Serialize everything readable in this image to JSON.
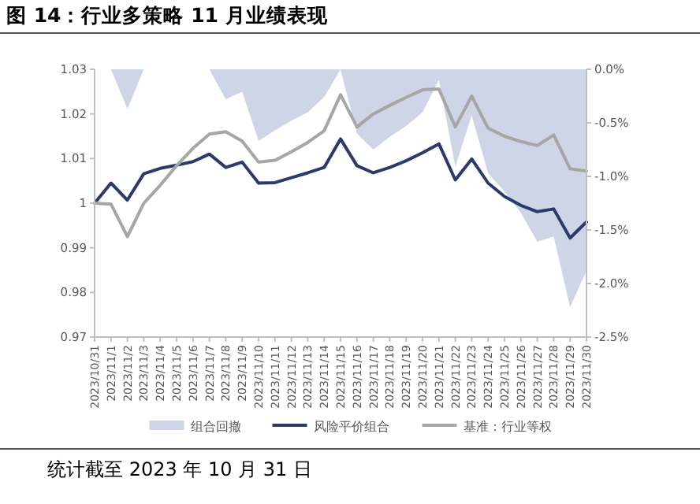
{
  "chart_data": {
    "type": "line",
    "title": "图 14：行业多策略 11 月业绩表现",
    "categories": [
      "2023/10/31",
      "2023/11/1",
      "2023/11/2",
      "2023/11/3",
      "2023/11/4",
      "2023/11/5",
      "2023/11/6",
      "2023/11/7",
      "2023/11/8",
      "2023/11/9",
      "2023/11/10",
      "2023/11/11",
      "2023/11/12",
      "2023/11/13",
      "2023/11/14",
      "2023/11/15",
      "2023/11/16",
      "2023/11/17",
      "2023/11/18",
      "2023/11/19",
      "2023/11/20",
      "2023/11/21",
      "2023/11/22",
      "2023/11/23",
      "2023/11/24",
      "2023/11/25",
      "2023/11/26",
      "2023/11/27",
      "2023/11/28",
      "2023/11/29",
      "2023/11/30"
    ],
    "series": [
      {
        "name": "组合回撤",
        "type": "area",
        "axis": "y2",
        "color": "#cdd5e6",
        "values": [
          0,
          0,
          -0.37,
          0,
          0,
          0,
          0,
          0,
          -0.28,
          -0.21,
          -0.67,
          -0.57,
          -0.48,
          -0.4,
          -0.26,
          0,
          -0.6,
          -0.75,
          -0.63,
          -0.53,
          -0.4,
          -0.1,
          -0.91,
          -0.43,
          -0.97,
          -1.14,
          -1.34,
          -1.61,
          -1.56,
          -2.22,
          -1.88
        ]
      },
      {
        "name": "风险平价组合",
        "color": "#2b3a6b",
        "values": [
          1.0,
          1.0045,
          1.0007,
          1.0066,
          1.0078,
          1.0085,
          1.0093,
          1.011,
          1.008,
          1.0092,
          1.0045,
          1.0046,
          1.0057,
          1.0068,
          1.008,
          1.0144,
          1.0084,
          1.0068,
          1.008,
          1.0095,
          1.0113,
          1.0133,
          1.0052,
          1.0099,
          1.0045,
          1.0015,
          0.9995,
          0.9981,
          0.9987,
          0.9922,
          0.9958
        ]
      },
      {
        "name": "基准：行业等权",
        "color": "#a6a6a6",
        "values": [
          1.0,
          0.9998,
          0.9925,
          1.0,
          1.004,
          1.0084,
          1.0123,
          1.0155,
          1.016,
          1.0139,
          1.0092,
          1.0096,
          1.0115,
          1.0136,
          1.0162,
          1.0243,
          1.0171,
          1.02,
          1.0219,
          1.0237,
          1.0254,
          1.0256,
          1.0171,
          1.024,
          1.0168,
          1.015,
          1.0138,
          1.0129,
          1.0153,
          1.0077,
          1.0072
        ]
      }
    ],
    "ylim": [
      0.97,
      1.03
    ],
    "yticks": [
      0.97,
      0.98,
      0.99,
      1,
      1.01,
      1.02,
      1.03
    ],
    "y2lim": [
      -2.5,
      0
    ],
    "y2ticks": [
      {
        "value": 0,
        "label": "0.0%"
      },
      {
        "value": -0.5,
        "label": "-0.5%"
      },
      {
        "value": -1,
        "label": "-1.0%"
      },
      {
        "value": -1.5,
        "label": "-1.5%"
      },
      {
        "value": -2,
        "label": "-2.0%"
      },
      {
        "value": -2.5,
        "label": "-2.5%"
      }
    ],
    "legend": "bottom",
    "grid": false,
    "line_style": "solid",
    "annotations": [
      "统计截至 2023 年 10 月 31 日"
    ]
  }
}
